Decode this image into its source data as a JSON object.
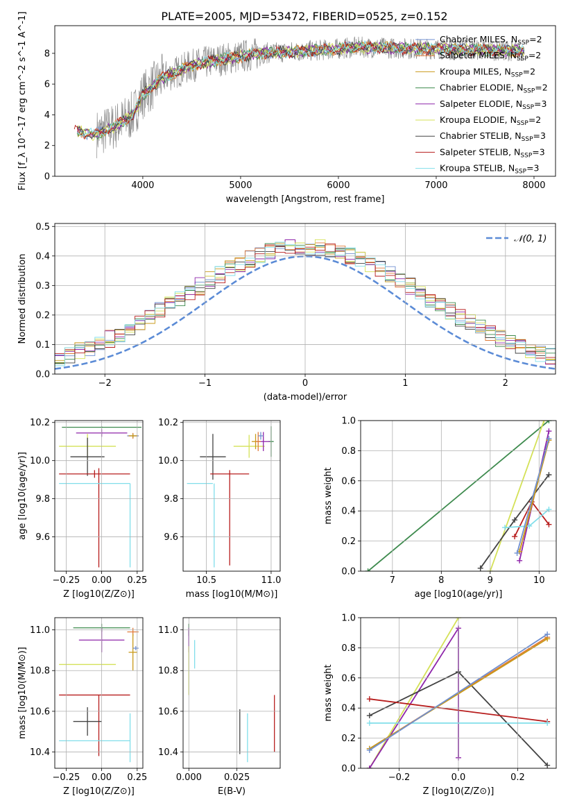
{
  "figure_title": "PLATE=2005, MJD=53472, FIBERID=0525, z=0.152",
  "colors": {
    "Chabrier MILES": "#6f8fd0",
    "Salpeter MILES": "#e07b39",
    "Kroupa MILES": "#c99a1a",
    "Chabrier ELODIE": "#3d8a4d",
    "Salpeter ELODIE": "#8e24aa",
    "Kroupa ELODIE": "#d4e157",
    "Chabrier STELIB": "#424242",
    "Salpeter STELIB": "#b71c1c",
    "Kroupa STELIB": "#80deea",
    "normal_curve": "#5b8bd6",
    "grid": "#b0b0b0"
  },
  "chart_data": [
    {
      "id": "spectrum",
      "type": "line",
      "title": "PLATE=2005, MJD=53472, FIBERID=0525, z=0.152",
      "xlabel": "wavelength [Angstrom, rest frame]",
      "ylabel": "Flux [f_λ 10^-17 erg cm^-2 s^-1 A^-1]",
      "xlim": [
        3100,
        8220
      ],
      "ylim": [
        0,
        9.8
      ],
      "xticks": [
        4000,
        5000,
        6000,
        7000,
        8000
      ],
      "yticks": [
        0,
        2,
        4,
        6,
        8
      ],
      "grid": false,
      "legend_position": "right",
      "legend": [
        "Chabrier MILES, N_SSP=2",
        "Salpeter MILES, N_SSP=2",
        "Kroupa MILES, N_SSP=2",
        "Chabrier ELODIE, N_SSP=2",
        "Salpeter ELODIE, N_SSP=3",
        "Kroupa ELODIE, N_SSP=2",
        "Chabrier STELIB, N_SSP=3",
        "Salpeter STELIB, N_SSP=3",
        "Kroupa STELIB, N_SSP=3"
      ],
      "continuum": {
        "x": [
          3300,
          3500,
          3700,
          3900,
          4000,
          4200,
          4500,
          4800,
          5000,
          5200,
          5500,
          5800,
          6000,
          6200,
          6500,
          6800,
          7000,
          7300,
          7600,
          7900
        ],
        "y": [
          3.0,
          2.7,
          3.2,
          4.0,
          5.3,
          6.4,
          7.2,
          7.6,
          7.8,
          8.0,
          8.1,
          8.2,
          8.3,
          8.4,
          8.35,
          8.3,
          8.3,
          8.25,
          8.2,
          8.15
        ]
      }
    },
    {
      "id": "residuals",
      "type": "step",
      "xlabel": "(data-model)/error",
      "ylabel": "Normed distribution",
      "xlim": [
        -2.5,
        2.5
      ],
      "ylim": [
        0,
        0.51
      ],
      "xticks": [
        -2,
        -1,
        0,
        1,
        2
      ],
      "yticks": [
        0.0,
        0.1,
        0.2,
        0.3,
        0.4,
        0.5
      ],
      "grid": true,
      "legend_position": "top-right",
      "curve_label": "𝒩(0, 1)"
    },
    {
      "id": "age_vs_Z",
      "type": "errorbar",
      "xlabel": "Z [log10(Z/Z⊙)]",
      "ylabel": "age  [log10(age/yr)]",
      "xlim": [
        -0.33,
        0.29
      ],
      "ylim": [
        9.42,
        10.21
      ],
      "xticks": [
        -0.25,
        0.0,
        0.25
      ],
      "xtick_labels": [
        "−0.25",
        "0.00",
        "0.25"
      ],
      "yticks": [
        9.6,
        9.8,
        10.0,
        10.2
      ],
      "grid": true,
      "points": [
        {
          "model": "Chabrier ELODIE",
          "x": 0.0,
          "xerr": 0.28,
          "y": 10.175,
          "yerr": 0.005
        },
        {
          "model": "Salpeter ELODIE",
          "x": 0.0,
          "xerr": 0.18,
          "y": 10.145,
          "yerr": 0.02
        },
        {
          "model": "Kroupa ELODIE",
          "x": -0.1,
          "xerr": 0.2,
          "y": 10.075,
          "yerr": 0.065
        },
        {
          "model": "Chabrier STELIB",
          "x": -0.1,
          "xerr": 0.12,
          "y": 10.02,
          "yerr": 0.1
        },
        {
          "model": "Salpeter STELIB",
          "x": -0.05,
          "xerr": 0.25,
          "y": 9.93,
          "yerr": 0.02
        },
        {
          "model": "Salpeter STELIB",
          "x": -0.02,
          "xerr": 0.0,
          "y": 9.7,
          "yerr": 0.26
        },
        {
          "model": "Kroupa STELIB",
          "x": -0.05,
          "xerr": 0.25,
          "y": 9.88,
          "yerr": 0.0
        },
        {
          "model": "Kroupa STELIB",
          "x": 0.2,
          "xerr": 0.0,
          "y": 9.66,
          "yerr": 0.22
        },
        {
          "model": "Salpeter MILES",
          "x": 0.22,
          "xerr": 0.04,
          "y": 10.13,
          "yerr": 0.015
        },
        {
          "model": "Chabrier MILES",
          "x": 0.22,
          "xerr": 0.04,
          "y": 10.13,
          "yerr": 0.01
        },
        {
          "model": "Kroupa MILES",
          "x": 0.22,
          "xerr": 0.03,
          "y": 10.13,
          "yerr": 0.01
        }
      ]
    },
    {
      "id": "age_vs_mass",
      "type": "errorbar",
      "xlabel": "mass [log10(M/M⊙)]",
      "ylabel": "",
      "xlim": [
        10.32,
        11.07
      ],
      "ylim": [
        9.42,
        10.21
      ],
      "xticks": [
        10.5,
        11.0
      ],
      "xtick_labels": [
        "10.5",
        "11.0"
      ],
      "yticks": [
        9.6,
        9.8,
        10.0,
        10.2
      ],
      "grid": true,
      "points": [
        {
          "model": "Chabrier STELIB",
          "x": 10.55,
          "xerr": 0.1,
          "y": 10.02,
          "yerr": 0.12
        },
        {
          "model": "Salpeter STELIB",
          "x": 10.68,
          "xerr": 0.15,
          "y": 9.93,
          "yerr": 0.0
        },
        {
          "model": "Salpeter STELIB",
          "x": 10.68,
          "xerr": 0.0,
          "y": 9.7,
          "yerr": 0.25
        },
        {
          "model": "Kroupa STELIB",
          "x": 10.45,
          "xerr": 0.1,
          "y": 9.88,
          "yerr": 0.0
        },
        {
          "model": "Kroupa STELIB",
          "x": 10.56,
          "xerr": 0.0,
          "y": 9.66,
          "yerr": 0.22
        },
        {
          "model": "Kroupa ELODIE",
          "x": 10.83,
          "xerr": 0.12,
          "y": 10.075,
          "yerr": 0.06
        },
        {
          "model": "Chabrier ELODIE",
          "x": 11.0,
          "xerr": 0.02,
          "y": 10.1,
          "yerr": 0.08
        },
        {
          "model": "Salpeter ELODIE",
          "x": 10.94,
          "xerr": 0.05,
          "y": 10.1,
          "yerr": 0.05
        },
        {
          "model": "Kroupa MILES",
          "x": 10.88,
          "xerr": 0.03,
          "y": 10.1,
          "yerr": 0.04
        },
        {
          "model": "Salpeter MILES",
          "x": 10.9,
          "xerr": 0.02,
          "y": 10.1,
          "yerr": 0.05
        },
        {
          "model": "Chabrier MILES",
          "x": 10.92,
          "xerr": 0.02,
          "y": 10.13,
          "yerr": 0.02
        }
      ]
    },
    {
      "id": "weight_vs_age",
      "type": "line",
      "xlabel": "age  [log10(age/yr)]",
      "ylabel": "mass weight",
      "xlim": [
        6.35,
        10.35
      ],
      "ylim": [
        0,
        1.0
      ],
      "xticks": [
        7,
        8,
        9,
        10
      ],
      "yticks": [
        0.0,
        0.2,
        0.4,
        0.6,
        0.8,
        1.0
      ],
      "grid": true,
      "series": [
        {
          "model": "Chabrier ELODIE",
          "x": [
            6.5,
            10.2
          ],
          "y": [
            0.0,
            1.0
          ]
        },
        {
          "model": "Kroupa ELODIE",
          "x": [
            9.0,
            10.1
          ],
          "y": [
            0.0,
            1.0
          ]
        },
        {
          "model": "Salpeter ELODIE",
          "x": [
            9.6,
            10.2
          ],
          "y": [
            0.07,
            0.93
          ]
        },
        {
          "model": "Chabrier STELIB",
          "x": [
            8.8,
            9.5,
            10.2
          ],
          "y": [
            0.02,
            0.34,
            0.64
          ]
        },
        {
          "model": "Salpeter STELIB",
          "x": [
            9.5,
            9.85,
            10.2
          ],
          "y": [
            0.23,
            0.46,
            0.31
          ]
        },
        {
          "model": "Kroupa STELIB",
          "x": [
            9.3,
            9.8,
            10.2
          ],
          "y": [
            0.29,
            0.3,
            0.41
          ]
        },
        {
          "model": "Salpeter MILES",
          "x": [
            9.6,
            10.2
          ],
          "y": [
            0.13,
            0.87
          ]
        },
        {
          "model": "Kroupa MILES",
          "x": [
            9.6,
            10.2
          ],
          "y": [
            0.13,
            0.87
          ]
        },
        {
          "model": "Chabrier MILES",
          "x": [
            9.55,
            10.2
          ],
          "y": [
            0.12,
            0.88
          ]
        }
      ]
    },
    {
      "id": "mass_vs_Z",
      "type": "errorbar",
      "xlabel": "Z [log10(Z/Z⊙)]",
      "ylabel": "mass [log10(M/M⊙)]",
      "xlim": [
        -0.33,
        0.29
      ],
      "ylim": [
        10.32,
        11.06
      ],
      "xticks": [
        -0.25,
        0.0,
        0.25
      ],
      "xtick_labels": [
        "−0.25",
        "0.00",
        "0.25"
      ],
      "yticks": [
        10.4,
        10.6,
        10.8,
        11.0
      ],
      "grid": true,
      "points": [
        {
          "model": "Chabrier ELODIE",
          "x": 0.0,
          "xerr": 0.2,
          "y": 11.01,
          "yerr": 0.02
        },
        {
          "model": "Salpeter ELODIE",
          "x": 0.0,
          "xerr": 0.16,
          "y": 10.95,
          "yerr": 0.06
        },
        {
          "model": "Kroupa ELODIE",
          "x": -0.3,
          "xerr": 0.0,
          "y": 10.83,
          "yerr": 0.0
        },
        {
          "model": "Kroupa ELODIE",
          "x": -0.1,
          "xerr": 0.2,
          "y": 10.83,
          "yerr": 0.0
        },
        {
          "model": "Salpeter STELIB",
          "x": -0.05,
          "xerr": 0.25,
          "y": 10.68,
          "yerr": 0.0
        },
        {
          "model": "Salpeter STELIB",
          "x": -0.02,
          "xerr": 0.0,
          "y": 10.53,
          "yerr": 0.15
        },
        {
          "model": "Chabrier STELIB",
          "x": -0.1,
          "xerr": 0.1,
          "y": 10.55,
          "yerr": 0.07
        },
        {
          "model": "Kroupa STELIB",
          "x": -0.05,
          "xerr": 0.25,
          "y": 10.455,
          "yerr": 0.0
        },
        {
          "model": "Kroupa STELIB",
          "x": 0.2,
          "xerr": 0.0,
          "y": 10.47,
          "yerr": 0.12
        },
        {
          "model": "Salpeter MILES",
          "x": 0.22,
          "xerr": 0.04,
          "y": 10.99,
          "yerr": 0.02
        },
        {
          "model": "Kroupa MILES",
          "x": 0.22,
          "xerr": 0.03,
          "y": 10.89,
          "yerr": 0.09
        },
        {
          "model": "Chabrier MILES",
          "x": 0.24,
          "xerr": 0.02,
          "y": 10.91,
          "yerr": 0.01
        }
      ]
    },
    {
      "id": "mass_vs_EBV",
      "type": "errorbar",
      "xlabel": "E(B-V)",
      "ylabel": "",
      "xlim": [
        -0.003,
        0.0475
      ],
      "ylim": [
        10.32,
        11.06
      ],
      "xticks": [
        0.0,
        0.025
      ],
      "xtick_labels": [
        "0.000",
        "0.025"
      ],
      "yticks": [
        10.4,
        10.6,
        10.8,
        11.0
      ],
      "grid": true,
      "points": [
        {
          "model": "Chabrier ELODIE",
          "x": 0.0,
          "xerr": 0.0,
          "y": 11.0,
          "yerr": 0.03
        },
        {
          "model": "Salpeter ELODIE",
          "x": 0.0,
          "xerr": 0.0,
          "y": 10.95,
          "yerr": 0.06
        },
        {
          "model": "Kroupa ELODIE",
          "x": 0.0,
          "xerr": 0.0,
          "y": 10.8,
          "yerr": 0.12
        },
        {
          "model": "Kroupa STELIB",
          "x": 0.003,
          "xerr": 0.0,
          "y": 10.88,
          "yerr": 0.07
        },
        {
          "model": "Chabrier STELIB",
          "x": 0.0265,
          "xerr": 0.0,
          "y": 10.5,
          "yerr": 0.11
        },
        {
          "model": "Kroupa STELIB",
          "x": 0.0305,
          "xerr": 0.0,
          "y": 10.47,
          "yerr": 0.12
        },
        {
          "model": "Salpeter STELIB",
          "x": 0.0445,
          "xerr": 0.0,
          "y": 10.54,
          "yerr": 0.14
        }
      ]
    },
    {
      "id": "weight_vs_Z",
      "type": "line",
      "xlabel": "Z [log10(Z/Z⊙)]",
      "ylabel": "mass weight",
      "xlim": [
        -0.33,
        0.33
      ],
      "ylim": [
        0,
        1.0
      ],
      "xticks": [
        -0.2,
        0.0,
        0.2
      ],
      "xtick_labels": [
        "−0.2",
        "0.0",
        "0.2"
      ],
      "yticks": [
        0.0,
        0.2,
        0.4,
        0.6,
        0.8,
        1.0
      ],
      "grid": true,
      "series": [
        {
          "model": "Kroupa ELODIE",
          "x": [
            -0.3,
            0.0
          ],
          "y": [
            0.0,
            1.0
          ]
        },
        {
          "model": "Salpeter ELODIE",
          "x": [
            -0.3,
            0.0,
            0.0
          ],
          "y": [
            0.0,
            0.93,
            0.07
          ]
        },
        {
          "model": "Chabrier STELIB",
          "x": [
            -0.3,
            0.0,
            0.3
          ],
          "y": [
            0.35,
            0.64,
            0.02
          ]
        },
        {
          "model": "Salpeter STELIB",
          "x": [
            -0.3,
            0.3
          ],
          "y": [
            0.46,
            0.31
          ]
        },
        {
          "model": "Kroupa STELIB",
          "x": [
            -0.3,
            0.3
          ],
          "y": [
            0.3,
            0.3
          ]
        },
        {
          "model": "Salpeter MILES",
          "x": [
            -0.3,
            0.3
          ],
          "y": [
            0.13,
            0.87
          ]
        },
        {
          "model": "Kroupa MILES",
          "x": [
            -0.3,
            0.3
          ],
          "y": [
            0.13,
            0.86
          ]
        },
        {
          "model": "Chabrier MILES",
          "x": [
            -0.3,
            0.3
          ],
          "y": [
            0.12,
            0.89
          ]
        }
      ]
    }
  ]
}
